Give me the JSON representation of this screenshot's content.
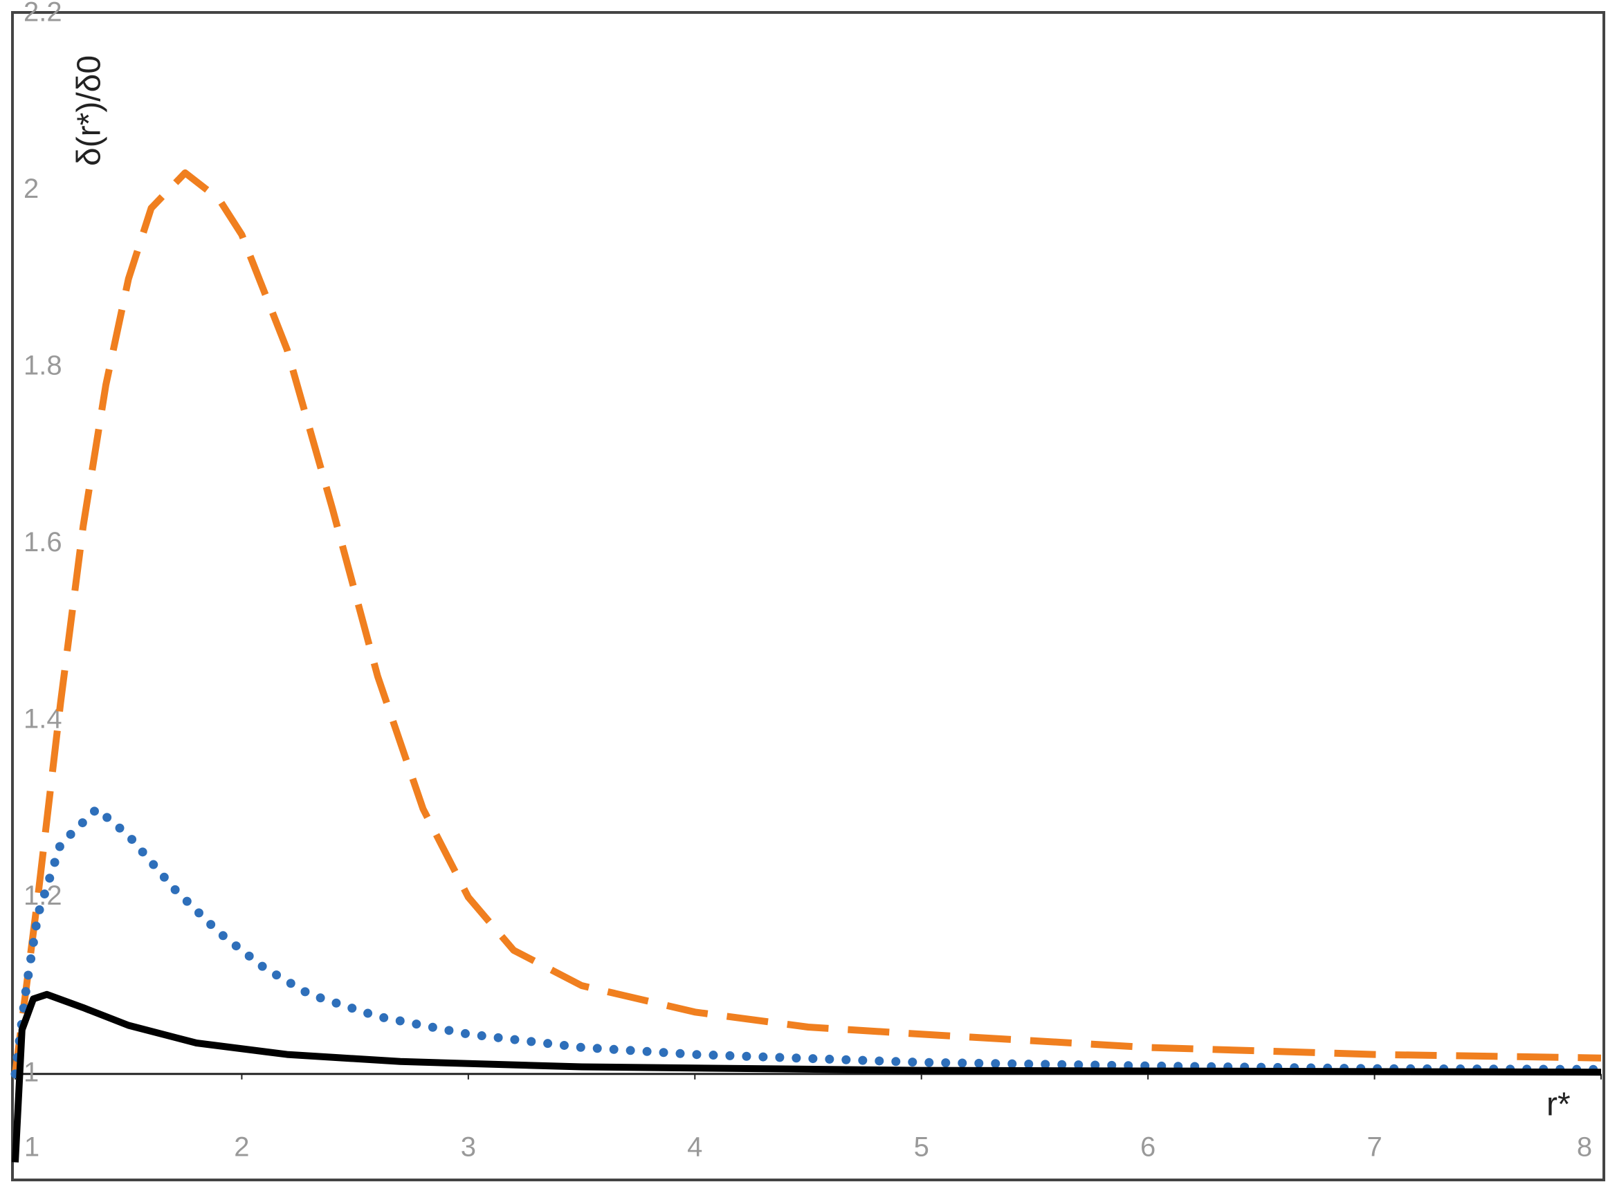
{
  "chart_data": {
    "type": "line",
    "x_label": "r*",
    "y_label": "δ(r*)/δ0",
    "xlim": [
      1,
      8
    ],
    "xticks": [
      1,
      2,
      3,
      4,
      5,
      6,
      7,
      8
    ],
    "ylim": [
      0.88,
      2.2
    ],
    "yticks": [
      1,
      1.2,
      1.4,
      1.6,
      1.8,
      2,
      2.2
    ],
    "series": [
      {
        "color": "#f07f1f",
        "style": "dashed",
        "x": [
          1.0,
          1.1,
          1.2,
          1.3,
          1.4,
          1.5,
          1.6,
          1.75,
          1.9,
          2.0,
          2.2,
          2.4,
          2.6,
          2.8,
          3.0,
          3.2,
          3.5,
          4.0,
          4.5,
          5.0,
          6.0,
          7.0,
          8.0
        ],
        "values": [
          1.0,
          1.2,
          1.42,
          1.62,
          1.78,
          1.9,
          1.98,
          2.02,
          1.99,
          1.95,
          1.82,
          1.64,
          1.45,
          1.3,
          1.2,
          1.14,
          1.1,
          1.07,
          1.053,
          1.045,
          1.03,
          1.022,
          1.018
        ]
      },
      {
        "color": "#2e6fba",
        "style": "dotted",
        "x": [
          1.0,
          1.05,
          1.1,
          1.2,
          1.36,
          1.5,
          1.7,
          1.9,
          2.1,
          2.3,
          2.6,
          3.0,
          3.5,
          4.0,
          5.0,
          6.0,
          7.0,
          8.0
        ],
        "values": [
          1.0,
          1.1,
          1.18,
          1.26,
          1.3,
          1.27,
          1.21,
          1.16,
          1.12,
          1.09,
          1.065,
          1.045,
          1.03,
          1.022,
          1.013,
          1.009,
          1.006,
          1.005
        ]
      },
      {
        "color": "#000000",
        "style": "solid",
        "x": [
          1.0,
          1.03,
          1.08,
          1.14,
          1.3,
          1.5,
          1.8,
          2.2,
          2.7,
          3.5,
          5.0,
          8.0
        ],
        "values": [
          0.9,
          1.05,
          1.085,
          1.09,
          1.075,
          1.055,
          1.035,
          1.022,
          1.014,
          1.008,
          1.004,
          1.002
        ]
      }
    ]
  }
}
